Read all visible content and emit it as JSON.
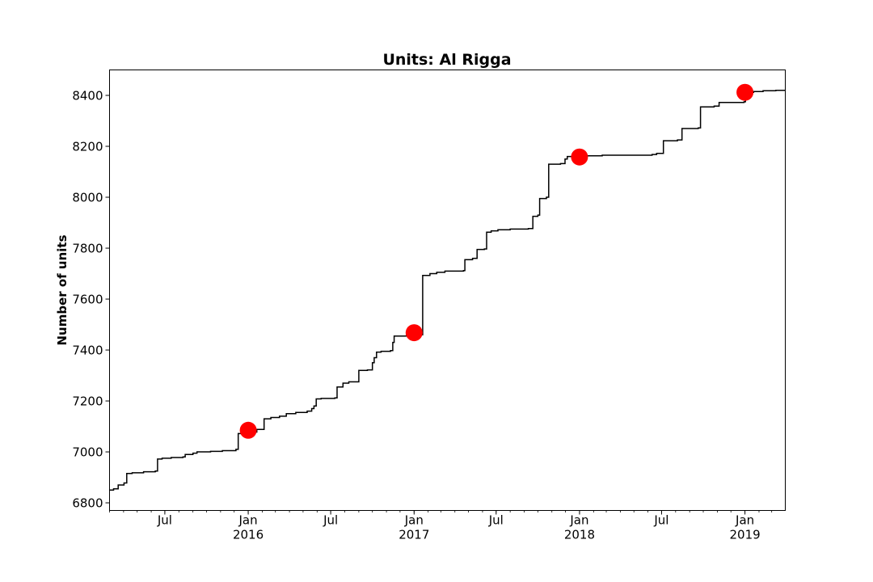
{
  "chart_data": {
    "type": "line",
    "title": "Units: Al Rigga",
    "xlabel": "",
    "ylabel": "Number of units",
    "x_axis": "date",
    "xlim": [
      "2015-03-01",
      "2019-03-31"
    ],
    "ylim": [
      6770,
      8500
    ],
    "y_ticks": [
      6800,
      7000,
      7200,
      7400,
      7600,
      7800,
      8000,
      8200,
      8400
    ],
    "x_major_ticks": [
      {
        "date": "2015-07-01",
        "label": "Jul",
        "year_label": ""
      },
      {
        "date": "2016-01-01",
        "label": "Jan",
        "year_label": "2016"
      },
      {
        "date": "2016-07-01",
        "label": "Jul",
        "year_label": ""
      },
      {
        "date": "2017-01-01",
        "label": "Jan",
        "year_label": "2017"
      },
      {
        "date": "2017-07-01",
        "label": "Jul",
        "year_label": ""
      },
      {
        "date": "2018-01-01",
        "label": "Jan",
        "year_label": "2018"
      },
      {
        "date": "2018-07-01",
        "label": "Jul",
        "year_label": ""
      },
      {
        "date": "2019-01-01",
        "label": "Jan",
        "year_label": "2019"
      }
    ],
    "x_minor_ticks": "monthly",
    "grid": false,
    "legend": "none",
    "colors": {
      "line": "#000000",
      "marker": "#ff0000"
    },
    "series": [
      {
        "type": "step",
        "points": [
          [
            "2015-03-01",
            6850
          ],
          [
            "2015-03-10",
            6855
          ],
          [
            "2015-03-20",
            6870
          ],
          [
            "2015-04-02",
            6878
          ],
          [
            "2015-04-08",
            6915
          ],
          [
            "2015-04-20",
            6918
          ],
          [
            "2015-05-15",
            6922
          ],
          [
            "2015-06-10",
            6925
          ],
          [
            "2015-06-15",
            6972
          ],
          [
            "2015-06-25",
            6975
          ],
          [
            "2015-07-15",
            6978
          ],
          [
            "2015-08-10",
            6980
          ],
          [
            "2015-08-15",
            6990
          ],
          [
            "2015-09-01",
            6995
          ],
          [
            "2015-09-10",
            7000
          ],
          [
            "2015-10-10",
            7002
          ],
          [
            "2015-11-05",
            7005
          ],
          [
            "2015-12-05",
            7010
          ],
          [
            "2015-12-10",
            7072
          ],
          [
            "2015-12-20",
            7075
          ],
          [
            "2016-01-01",
            7078
          ],
          [
            "2016-01-20",
            7088
          ],
          [
            "2016-02-05",
            7130
          ],
          [
            "2016-02-20",
            7135
          ],
          [
            "2016-03-10",
            7140
          ],
          [
            "2016-03-25",
            7150
          ],
          [
            "2016-04-15",
            7155
          ],
          [
            "2016-05-10",
            7160
          ],
          [
            "2016-05-20",
            7170
          ],
          [
            "2016-05-25",
            7180
          ],
          [
            "2016-05-30",
            7208
          ],
          [
            "2016-06-10",
            7210
          ],
          [
            "2016-07-10",
            7212
          ],
          [
            "2016-07-15",
            7255
          ],
          [
            "2016-07-28",
            7270
          ],
          [
            "2016-08-10",
            7275
          ],
          [
            "2016-09-01",
            7320
          ],
          [
            "2016-09-20",
            7322
          ],
          [
            "2016-10-01",
            7350
          ],
          [
            "2016-10-05",
            7370
          ],
          [
            "2016-10-10",
            7392
          ],
          [
            "2016-10-20",
            7395
          ],
          [
            "2016-11-10",
            7398
          ],
          [
            "2016-11-15",
            7430
          ],
          [
            "2016-11-18",
            7455
          ],
          [
            "2016-12-15",
            7458
          ],
          [
            "2016-12-25",
            7460
          ],
          [
            "2017-01-20",
            7693
          ],
          [
            "2017-02-05",
            7700
          ],
          [
            "2017-02-20",
            7705
          ],
          [
            "2017-03-10",
            7710
          ],
          [
            "2017-04-20",
            7712
          ],
          [
            "2017-04-23",
            7755
          ],
          [
            "2017-05-10",
            7760
          ],
          [
            "2017-05-20",
            7795
          ],
          [
            "2017-06-05",
            7797
          ],
          [
            "2017-06-10",
            7863
          ],
          [
            "2017-06-20",
            7868
          ],
          [
            "2017-07-05",
            7872
          ],
          [
            "2017-08-01",
            7875
          ],
          [
            "2017-09-10",
            7877
          ],
          [
            "2017-09-20",
            7925
          ],
          [
            "2017-10-01",
            7930
          ],
          [
            "2017-10-05",
            7995
          ],
          [
            "2017-10-20",
            8000
          ],
          [
            "2017-10-25",
            8130
          ],
          [
            "2017-11-20",
            8132
          ],
          [
            "2017-11-30",
            8150
          ],
          [
            "2017-12-05",
            8160
          ],
          [
            "2018-01-15",
            8163
          ],
          [
            "2018-02-20",
            8165
          ],
          [
            "2018-06-10",
            8168
          ],
          [
            "2018-06-20",
            8172
          ],
          [
            "2018-07-05",
            8222
          ],
          [
            "2018-08-05",
            8225
          ],
          [
            "2018-08-15",
            8270
          ],
          [
            "2018-09-20",
            8272
          ],
          [
            "2018-09-25",
            8355
          ],
          [
            "2018-10-25",
            8358
          ],
          [
            "2018-11-05",
            8372
          ],
          [
            "2018-12-30",
            8375
          ],
          [
            "2019-01-02",
            8412
          ],
          [
            "2019-01-20",
            8415
          ],
          [
            "2019-02-10",
            8418
          ],
          [
            "2019-03-10",
            8420
          ],
          [
            "2019-03-31",
            8420
          ]
        ]
      },
      {
        "type": "scatter",
        "points": [
          [
            "2016-01-01",
            7085
          ],
          [
            "2017-01-01",
            7468
          ],
          [
            "2018-01-01",
            8158
          ],
          [
            "2019-01-01",
            8412
          ]
        ]
      }
    ]
  }
}
